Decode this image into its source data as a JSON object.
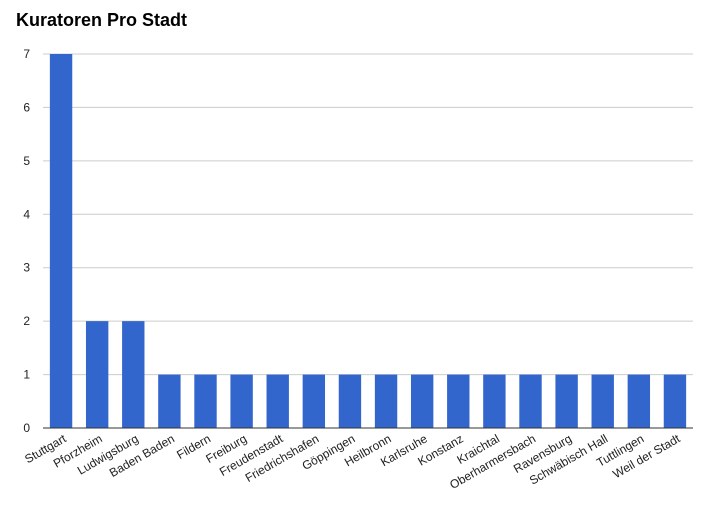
{
  "colors": {
    "bar": "#3366cc",
    "grid": "#cccccc",
    "axis": "#333333",
    "text": "#222222",
    "background": "#ffffff"
  },
  "chart_data": {
    "type": "bar",
    "title": "Kuratoren Pro Stadt",
    "xlabel": "",
    "ylabel": "",
    "ylim": [
      0,
      7
    ],
    "yticks": [
      0,
      1,
      2,
      3,
      4,
      5,
      6,
      7
    ],
    "grid": true,
    "legend": "none",
    "categories": [
      "Stuttgart",
      "Pforzheim",
      "Ludwigsburg",
      "Baden Baden",
      "Fildern",
      "Freiburg",
      "Freudenstadt",
      "Friedrichshafen",
      "Göppingen",
      "Heilbronn",
      "Karlsruhe",
      "Konstanz",
      "Kraichtal",
      "Oberharmersbach",
      "Ravensburg",
      "Schwäbisch Hall",
      "Tuttlingen",
      "Weil der Stadt"
    ],
    "values": [
      7,
      2,
      2,
      1,
      1,
      1,
      1,
      1,
      1,
      1,
      1,
      1,
      1,
      1,
      1,
      1,
      1,
      1
    ]
  }
}
